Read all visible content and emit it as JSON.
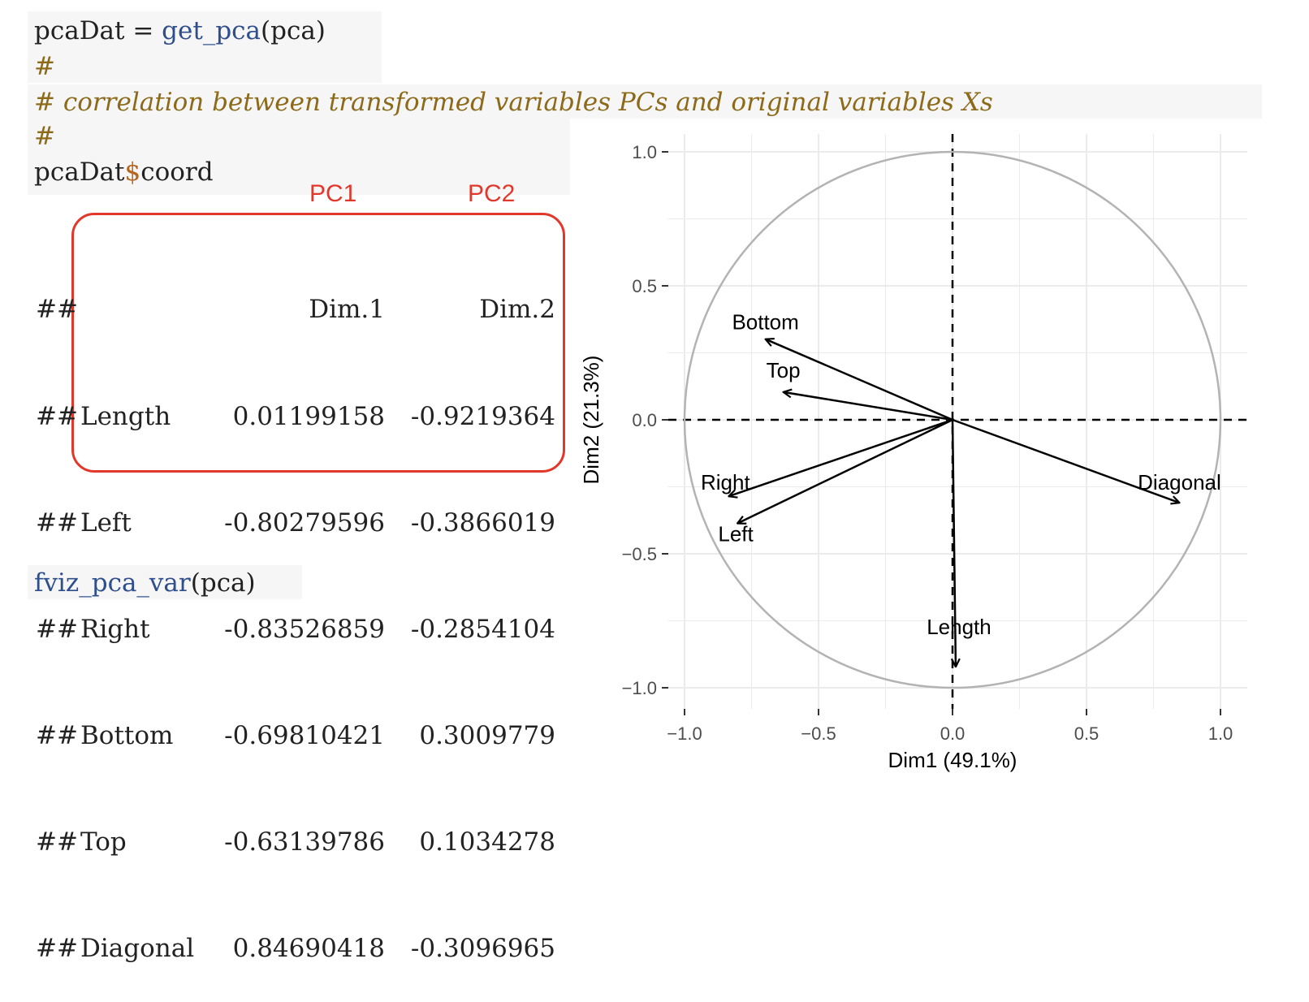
{
  "code": {
    "line1_var": "pcaDat",
    "line1_op": " = ",
    "line1_fn": "get_pca",
    "line1_arg": "(pca)",
    "line2": "#",
    "comment": "# correlation between transformed variables PCs and original variables Xs",
    "line4": "#",
    "line5_a": "pcaDat",
    "line5_dollar": "$",
    "line5_b": "coord",
    "call_fn": "fviz_pca_var",
    "call_arg": "(pca)"
  },
  "annotations": {
    "pc1": "PC1",
    "pc2": "PC2"
  },
  "output": {
    "prefix": "##",
    "headers": [
      "Dim.1",
      "Dim.2"
    ],
    "rows": [
      {
        "name": "Length",
        "dim1": "0.01199158",
        "dim2": "-0.9219364"
      },
      {
        "name": "Left",
        "dim1": "-0.80279596",
        "dim2": "-0.3866019"
      },
      {
        "name": "Right",
        "dim1": "-0.83526859",
        "dim2": "-0.2854104"
      },
      {
        "name": "Bottom",
        "dim1": "-0.69810421",
        "dim2": "0.3009779"
      },
      {
        "name": "Top",
        "dim1": "-0.63139786",
        "dim2": "0.1034278"
      },
      {
        "name": "Diagonal",
        "dim1": "0.84690418",
        "dim2": "-0.3096965"
      }
    ]
  },
  "chart_data": {
    "type": "scatter",
    "xlabel": "Dim1 (49.1%)",
    "ylabel": "Dim2 (21.3%)",
    "xlim": [
      -1.0,
      1.0
    ],
    "ylim": [
      -1.0,
      1.0
    ],
    "xticks": [
      "-1.0",
      "-0.5",
      "0.0",
      "0.5",
      "1.0"
    ],
    "yticks": [
      "-1.0",
      "-0.5",
      "0.0",
      "0.5",
      "1.0"
    ],
    "grid": true,
    "correlation_circle": true,
    "arrows": [
      {
        "label": "Length",
        "x": 0.01199158,
        "y": -0.9219364
      },
      {
        "label": "Left",
        "x": -0.80279596,
        "y": -0.3866019
      },
      {
        "label": "Right",
        "x": -0.83526859,
        "y": -0.2854104
      },
      {
        "label": "Bottom",
        "x": -0.69810421,
        "y": 0.3009779
      },
      {
        "label": "Top",
        "x": -0.63139786,
        "y": 0.1034278
      },
      {
        "label": "Diagonal",
        "x": 0.84690418,
        "y": -0.3096965
      }
    ],
    "colors": {
      "arrow": "#000000",
      "circle": "#b3b3b3",
      "grid": "#ebebeb"
    }
  }
}
